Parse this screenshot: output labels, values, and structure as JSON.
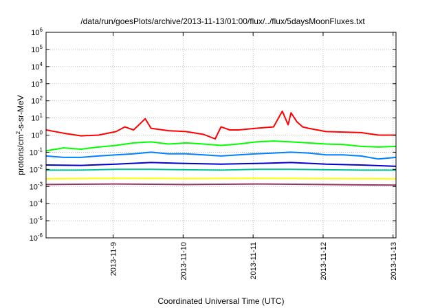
{
  "chart_data": {
    "type": "line",
    "title": "/data/run/goesPlots/archive/2013-11-13/01:00/flux/../flux/5daysMoonFluxes.txt",
    "xlabel": "Coordinated Universal Time (UTC)",
    "ylabel": {
      "pre": "protons/cm",
      "sup": "2",
      "post": "-s-sr-MeV"
    },
    "y_scale": "log",
    "ylim": [
      1e-06,
      1000000.0
    ],
    "y_ticks": [
      {
        "value": 1e-06,
        "base": "10",
        "exp": "-6"
      },
      {
        "value": 1e-05,
        "base": "10",
        "exp": "-5"
      },
      {
        "value": 0.0001,
        "base": "10",
        "exp": "-4"
      },
      {
        "value": 0.001,
        "base": "10",
        "exp": "-3"
      },
      {
        "value": 0.01,
        "base": "10",
        "exp": "-2"
      },
      {
        "value": 0.1,
        "base": "10",
        "exp": "-1"
      },
      {
        "value": 1.0,
        "base": "10",
        "exp": "0"
      },
      {
        "value": 10.0,
        "base": "10",
        "exp": "1"
      },
      {
        "value": 100.0,
        "base": "10",
        "exp": "2"
      },
      {
        "value": 1000.0,
        "base": "10",
        "exp": "3"
      },
      {
        "value": 10000.0,
        "base": "10",
        "exp": "4"
      },
      {
        "value": 100000.0,
        "base": "10",
        "exp": "5"
      },
      {
        "value": 1000000.0,
        "base": "10",
        "exp": "6"
      }
    ],
    "xlim": [
      "2013-11-08T01:00",
      "2013-11-13T01:00"
    ],
    "x_ticks": [
      "2013-11-9",
      "2013-11-10",
      "2013-11-11",
      "2013-11-12",
      "2013-11-13"
    ],
    "x_tick_dates": [
      "2013-11-09",
      "2013-11-10",
      "2013-11-11",
      "2013-11-12",
      "2013-11-13"
    ],
    "grid": true,
    "legend": "none",
    "series": [
      {
        "color": "#ff0000",
        "x": [
          "2013-11-08T01:00",
          "2013-11-08T07:00",
          "2013-11-08T13:00",
          "2013-11-08T19:00",
          "2013-11-09T01:00",
          "2013-11-09T04:00",
          "2013-11-09T07:00",
          "2013-11-09T11:00",
          "2013-11-09T13:00",
          "2013-11-09T19:00",
          "2013-11-10T01:00",
          "2013-11-10T07:00",
          "2013-11-10T11:00",
          "2013-11-10T13:00",
          "2013-11-10T16:00",
          "2013-11-10T19:00",
          "2013-11-11T01:00",
          "2013-11-11T07:00",
          "2013-11-11T10:00",
          "2013-11-11T12:00",
          "2013-11-11T13:00",
          "2013-11-11T15:00",
          "2013-11-11T17:00",
          "2013-11-11T19:00",
          "2013-11-12T01:00",
          "2013-11-12T07:00",
          "2013-11-12T13:00",
          "2013-11-12T19:00",
          "2013-11-13T01:00"
        ],
        "y": [
          2.0,
          1.3,
          0.9,
          1.0,
          1.6,
          3.0,
          2.0,
          9.0,
          2.5,
          1.8,
          1.6,
          1.1,
          0.6,
          3.0,
          2.0,
          2.0,
          2.5,
          3.0,
          25,
          4.0,
          20,
          6.0,
          3.0,
          2.5,
          1.6,
          1.5,
          1.4,
          1.0,
          1.0
        ]
      },
      {
        "color": "#00ff00",
        "x": [
          "2013-11-08T01:00",
          "2013-11-08T07:00",
          "2013-11-08T13:00",
          "2013-11-08T19:00",
          "2013-11-09T01:00",
          "2013-11-09T07:00",
          "2013-11-09T13:00",
          "2013-11-09T19:00",
          "2013-11-10T01:00",
          "2013-11-10T07:00",
          "2013-11-10T13:00",
          "2013-11-10T19:00",
          "2013-11-11T01:00",
          "2013-11-11T07:00",
          "2013-11-11T13:00",
          "2013-11-11T19:00",
          "2013-11-12T01:00",
          "2013-11-12T07:00",
          "2013-11-12T13:00",
          "2013-11-12T19:00",
          "2013-11-13T01:00"
        ],
        "y": [
          0.12,
          0.18,
          0.15,
          0.2,
          0.25,
          0.35,
          0.4,
          0.3,
          0.35,
          0.3,
          0.25,
          0.3,
          0.4,
          0.45,
          0.4,
          0.35,
          0.3,
          0.28,
          0.22,
          0.2,
          0.22
        ]
      },
      {
        "color": "#0080ff",
        "x": [
          "2013-11-08T01:00",
          "2013-11-08T07:00",
          "2013-11-08T13:00",
          "2013-11-08T19:00",
          "2013-11-09T01:00",
          "2013-11-09T07:00",
          "2013-11-09T13:00",
          "2013-11-09T19:00",
          "2013-11-10T01:00",
          "2013-11-10T07:00",
          "2013-11-10T13:00",
          "2013-11-10T19:00",
          "2013-11-11T01:00",
          "2013-11-11T07:00",
          "2013-11-11T13:00",
          "2013-11-11T19:00",
          "2013-11-12T01:00",
          "2013-11-12T07:00",
          "2013-11-12T13:00",
          "2013-11-12T19:00",
          "2013-11-13T01:00"
        ],
        "y": [
          0.06,
          0.05,
          0.05,
          0.06,
          0.07,
          0.08,
          0.1,
          0.08,
          0.08,
          0.07,
          0.06,
          0.07,
          0.08,
          0.09,
          0.1,
          0.09,
          0.07,
          0.07,
          0.06,
          0.04,
          0.05
        ]
      },
      {
        "color": "#0000cc",
        "x": [
          "2013-11-08T01:00",
          "2013-11-08T13:00",
          "2013-11-09T01:00",
          "2013-11-09T13:00",
          "2013-11-10T01:00",
          "2013-11-10T13:00",
          "2013-11-11T01:00",
          "2013-11-11T13:00",
          "2013-11-12T01:00",
          "2013-11-12T13:00",
          "2013-11-13T01:00"
        ],
        "y": [
          0.018,
          0.017,
          0.02,
          0.025,
          0.022,
          0.02,
          0.022,
          0.025,
          0.02,
          0.018,
          0.015
        ]
      },
      {
        "color": "#00c0a0",
        "x": [
          "2013-11-08T01:00",
          "2013-11-08T13:00",
          "2013-11-09T01:00",
          "2013-11-09T13:00",
          "2013-11-10T01:00",
          "2013-11-10T13:00",
          "2013-11-11T01:00",
          "2013-11-11T13:00",
          "2013-11-12T01:00",
          "2013-11-12T13:00",
          "2013-11-13T01:00"
        ],
        "y": [
          0.009,
          0.009,
          0.01,
          0.01,
          0.0095,
          0.009,
          0.01,
          0.01,
          0.0095,
          0.009,
          0.009
        ]
      },
      {
        "color": "#ffff00",
        "x": [
          "2013-11-08T01:00",
          "2013-11-09T01:00",
          "2013-11-10T01:00",
          "2013-11-11T01:00",
          "2013-11-12T01:00",
          "2013-11-13T01:00"
        ],
        "y": [
          0.0028,
          0.003,
          0.0029,
          0.003,
          0.0029,
          0.0028
        ]
      },
      {
        "color": "#993366",
        "x": [
          "2013-11-08T01:00",
          "2013-11-09T01:00",
          "2013-11-10T01:00",
          "2013-11-11T01:00",
          "2013-11-12T01:00",
          "2013-11-13T01:00"
        ],
        "y": [
          0.0013,
          0.0014,
          0.0013,
          0.0014,
          0.0013,
          0.0012
        ]
      }
    ]
  }
}
